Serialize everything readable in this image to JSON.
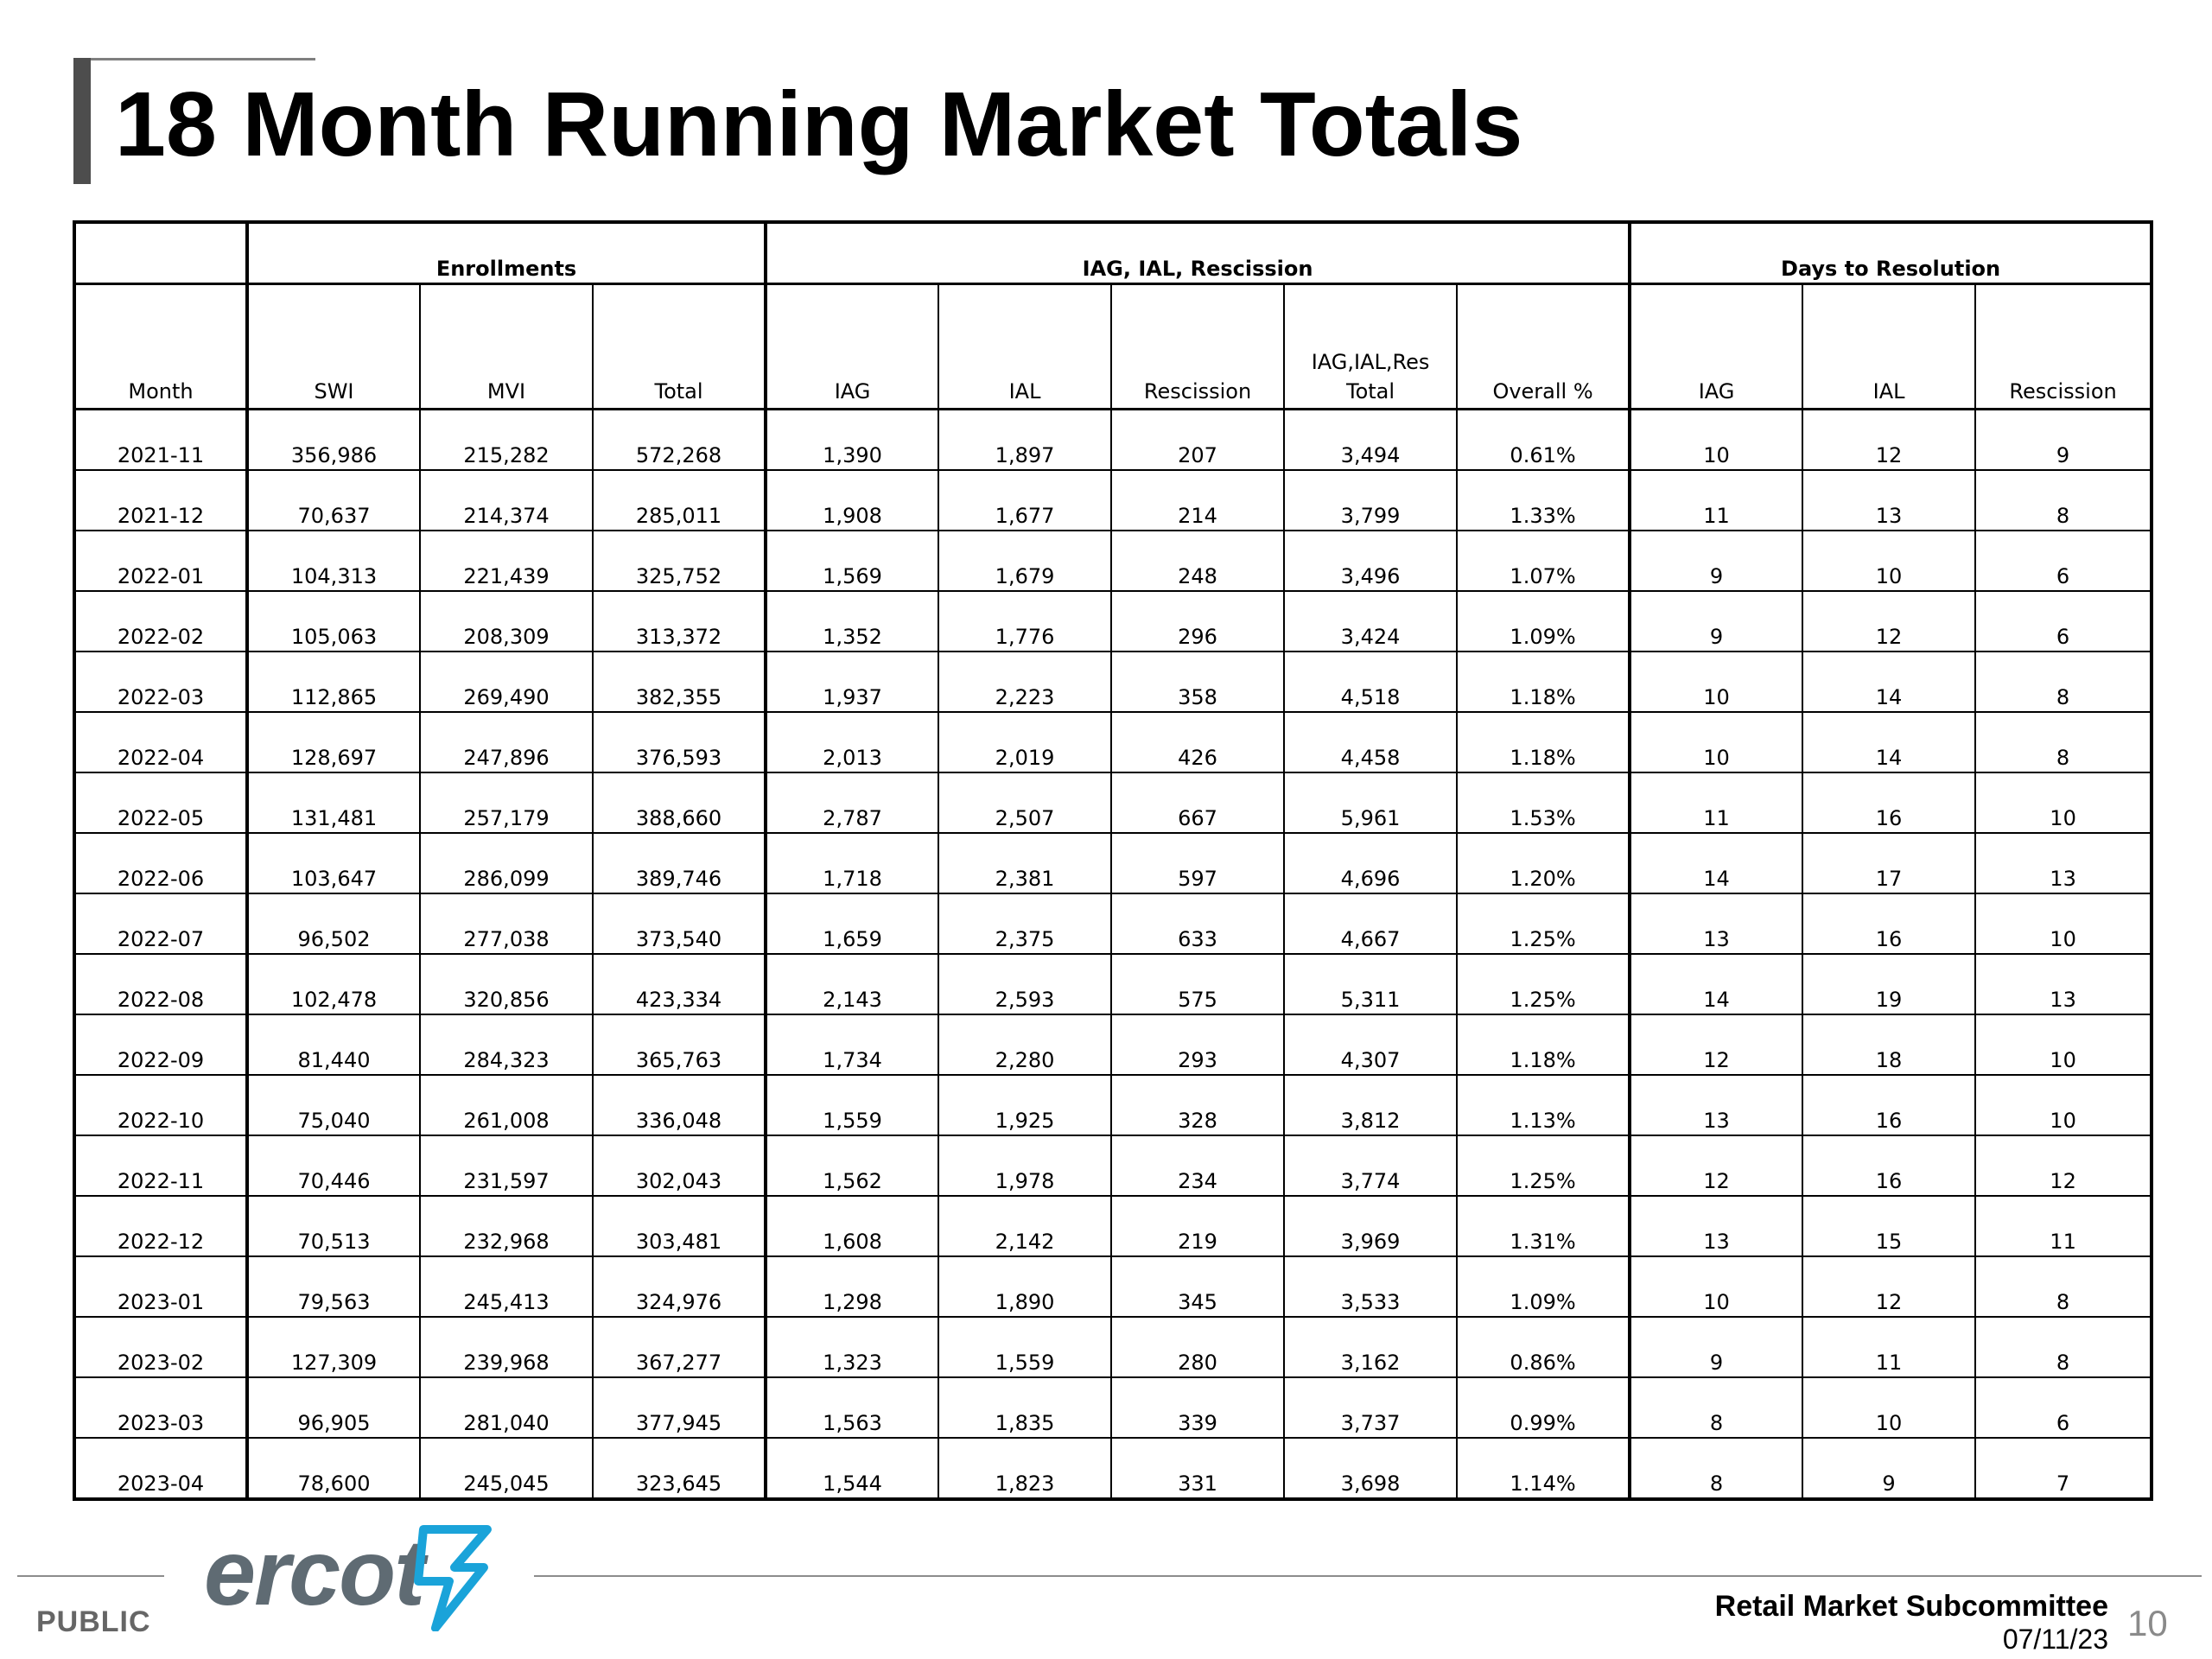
{
  "title": "18 Month Running Market Totals",
  "groups": {
    "enrollments": "Enrollments",
    "iag_ial_rescission": "IAG, IAL, Rescission",
    "days_to_resolution": "Days to Resolution"
  },
  "columns": {
    "month": "Month",
    "swi": "SWI",
    "mvi": "MVI",
    "total": "Total",
    "iag": "IAG",
    "ial": "IAL",
    "rescission": "Rescission",
    "res_total_line1": "IAG,IAL,Res",
    "res_total_line2": "Total",
    "overall": "Overall %",
    "d_iag": "IAG",
    "d_ial": "IAL",
    "d_rescission": "Rescission"
  },
  "rows": [
    [
      "2021-11",
      "356,986",
      "215,282",
      "572,268",
      "1,390",
      "1,897",
      "207",
      "3,494",
      "0.61%",
      "10",
      "12",
      "9"
    ],
    [
      "2021-12",
      "70,637",
      "214,374",
      "285,011",
      "1,908",
      "1,677",
      "214",
      "3,799",
      "1.33%",
      "11",
      "13",
      "8"
    ],
    [
      "2022-01",
      "104,313",
      "221,439",
      "325,752",
      "1,569",
      "1,679",
      "248",
      "3,496",
      "1.07%",
      "9",
      "10",
      "6"
    ],
    [
      "2022-02",
      "105,063",
      "208,309",
      "313,372",
      "1,352",
      "1,776",
      "296",
      "3,424",
      "1.09%",
      "9",
      "12",
      "6"
    ],
    [
      "2022-03",
      "112,865",
      "269,490",
      "382,355",
      "1,937",
      "2,223",
      "358",
      "4,518",
      "1.18%",
      "10",
      "14",
      "8"
    ],
    [
      "2022-04",
      "128,697",
      "247,896",
      "376,593",
      "2,013",
      "2,019",
      "426",
      "4,458",
      "1.18%",
      "10",
      "14",
      "8"
    ],
    [
      "2022-05",
      "131,481",
      "257,179",
      "388,660",
      "2,787",
      "2,507",
      "667",
      "5,961",
      "1.53%",
      "11",
      "16",
      "10"
    ],
    [
      "2022-06",
      "103,647",
      "286,099",
      "389,746",
      "1,718",
      "2,381",
      "597",
      "4,696",
      "1.20%",
      "14",
      "17",
      "13"
    ],
    [
      "2022-07",
      "96,502",
      "277,038",
      "373,540",
      "1,659",
      "2,375",
      "633",
      "4,667",
      "1.25%",
      "13",
      "16",
      "10"
    ],
    [
      "2022-08",
      "102,478",
      "320,856",
      "423,334",
      "2,143",
      "2,593",
      "575",
      "5,311",
      "1.25%",
      "14",
      "19",
      "13"
    ],
    [
      "2022-09",
      "81,440",
      "284,323",
      "365,763",
      "1,734",
      "2,280",
      "293",
      "4,307",
      "1.18%",
      "12",
      "18",
      "10"
    ],
    [
      "2022-10",
      "75,040",
      "261,008",
      "336,048",
      "1,559",
      "1,925",
      "328",
      "3,812",
      "1.13%",
      "13",
      "16",
      "10"
    ],
    [
      "2022-11",
      "70,446",
      "231,597",
      "302,043",
      "1,562",
      "1,978",
      "234",
      "3,774",
      "1.25%",
      "12",
      "16",
      "12"
    ],
    [
      "2022-12",
      "70,513",
      "232,968",
      "303,481",
      "1,608",
      "2,142",
      "219",
      "3,969",
      "1.31%",
      "13",
      "15",
      "11"
    ],
    [
      "2023-01",
      "79,563",
      "245,413",
      "324,976",
      "1,298",
      "1,890",
      "345",
      "3,533",
      "1.09%",
      "10",
      "12",
      "8"
    ],
    [
      "2023-02",
      "127,309",
      "239,968",
      "367,277",
      "1,323",
      "1,559",
      "280",
      "3,162",
      "0.86%",
      "9",
      "11",
      "8"
    ],
    [
      "2023-03",
      "96,905",
      "281,040",
      "377,945",
      "1,563",
      "1,835",
      "339",
      "3,737",
      "0.99%",
      "8",
      "10",
      "6"
    ],
    [
      "2023-04",
      "78,600",
      "245,045",
      "323,645",
      "1,544",
      "1,823",
      "331",
      "3,698",
      "1.14%",
      "8",
      "9",
      "7"
    ]
  ],
  "footer": {
    "classification": "PUBLIC",
    "logo_text": "ercot",
    "logo_icon": "ercot-bolt-icon",
    "meeting": "Retail Market Subcommittee",
    "date": "07/11/23",
    "page_number": "10"
  },
  "colors": {
    "logo": "#5f6b73",
    "logo_accent": "#1aa3d9",
    "rule": "#8c8c8c"
  }
}
